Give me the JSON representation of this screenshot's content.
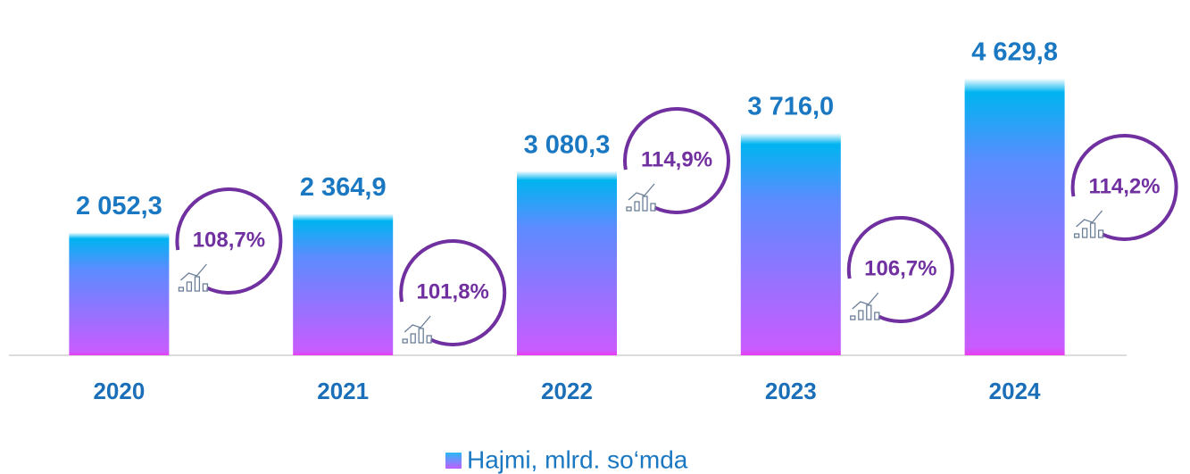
{
  "chart_data": {
    "type": "bar",
    "categories": [
      "2020",
      "2021",
      "2022",
      "2023",
      "2024"
    ],
    "series": [
      {
        "name": "Hajmi, mlrd. so‘mda",
        "color": "#5b8cff",
        "values": [
          2052.3,
          2364.9,
          3080.3,
          3716.0,
          4629.8
        ],
        "value_labels": [
          "2 052,3",
          "2 364,9",
          "3 080,3",
          "3 716,0",
          "4 629,8"
        ]
      }
    ],
    "annotations": [
      "108,7%",
      "101,8%",
      "114,9%",
      "106,7%",
      "114,2%"
    ],
    "ylim": [
      0,
      5000
    ],
    "legend": "bottom"
  }
}
